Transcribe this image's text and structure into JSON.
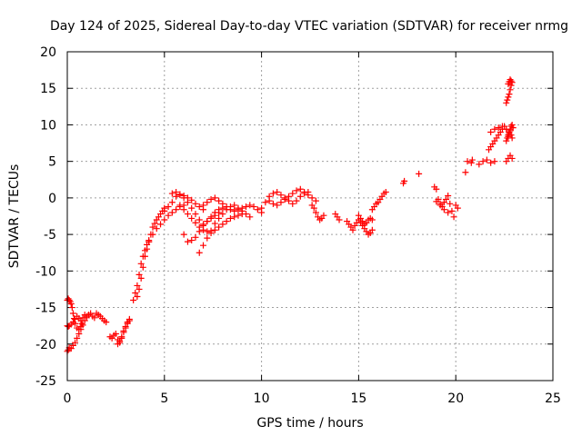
{
  "chart_data": {
    "type": "scatter",
    "title": "Day 124 of 2025, Sidereal Day-to-day VTEC variation (SDTVAR) for receiver nrmg",
    "xlabel": "GPS time / hours",
    "ylabel": "SDTVAR / TECUs",
    "xlim": [
      0,
      25
    ],
    "ylim": [
      -25,
      20
    ],
    "x_ticks": [
      0,
      5,
      10,
      15,
      20,
      25
    ],
    "y_ticks": [
      -25,
      -20,
      -15,
      -10,
      -5,
      0,
      5,
      10,
      15,
      20
    ],
    "grid": true,
    "marker": "+",
    "colors": {
      "series": "#ff0000",
      "grid": "#a0a0a0",
      "axis": "#000000"
    },
    "series": [
      {
        "name": "SDTVAR",
        "x": [
          0.0,
          0.05,
          0.1,
          0.2,
          0.3,
          0.4,
          0.5,
          0.6,
          0.7,
          0.8,
          0.9,
          1.0,
          1.1,
          1.2,
          1.3,
          1.4,
          1.5,
          1.6,
          1.7,
          1.8,
          1.9,
          2.0,
          0.0,
          0.05,
          0.1,
          0.15,
          0.2,
          0.25,
          0.3,
          0.35,
          0.4,
          0.5,
          0.6,
          0.7,
          0.75,
          0.0,
          0.05,
          0.1,
          0.2,
          0.3,
          0.4,
          0.5,
          0.6,
          0.7,
          0.8,
          0.9,
          1.0,
          2.2,
          2.3,
          2.4,
          2.5,
          2.6,
          2.7,
          2.8,
          2.9,
          3.0,
          3.1,
          3.2,
          2.6,
          2.7,
          2.8,
          2.9,
          3.0,
          3.1,
          3.2,
          3.4,
          3.5,
          3.6,
          3.7,
          3.8,
          3.9,
          4.0,
          4.1,
          4.2,
          3.6,
          3.7,
          3.8,
          3.9,
          4.0,
          4.1,
          4.2,
          4.3,
          4.4,
          4.5,
          4.6,
          4.7,
          4.8,
          4.9,
          5.0,
          4.2,
          4.4,
          4.6,
          4.8,
          5.0,
          5.2,
          5.4,
          5.6,
          5.8,
          6.0,
          5.0,
          5.2,
          5.4,
          5.6,
          5.8,
          6.0,
          6.2,
          6.4,
          6.6,
          6.8,
          7.0,
          5.4,
          5.6,
          5.8,
          6.0,
          6.2,
          6.4,
          6.6,
          6.8,
          7.0,
          7.2,
          7.4,
          7.6,
          7.8,
          8.0,
          5.8,
          6.0,
          6.2,
          6.4,
          6.6,
          6.8,
          7.0,
          7.2,
          7.4,
          7.6,
          7.8,
          8.0,
          8.2,
          8.4,
          8.6,
          8.8,
          9.0,
          6.0,
          6.2,
          6.4,
          6.6,
          6.8,
          7.0,
          7.2,
          7.4,
          7.6,
          7.8,
          7.0,
          7.2,
          7.4,
          7.6,
          7.8,
          8.0,
          8.2,
          8.4,
          8.6,
          8.8,
          9.0,
          9.2,
          9.4,
          9.6,
          9.8,
          10.0,
          6.8,
          7.0,
          7.2,
          7.4,
          7.6,
          7.8,
          8.0,
          8.2,
          8.4,
          8.6,
          8.8,
          9.0,
          9.2,
          9.4,
          10.0,
          10.2,
          10.4,
          10.6,
          10.8,
          11.0,
          11.2,
          11.4,
          11.6,
          11.8,
          12.0,
          12.2,
          12.4,
          10.4,
          10.6,
          10.8,
          11.0,
          11.2,
          11.4,
          11.6,
          11.8,
          12.0,
          12.2,
          12.4,
          12.6,
          12.8,
          12.6,
          12.7,
          12.8,
          12.9,
          13.0,
          13.1,
          13.2,
          13.8,
          13.9,
          14.0,
          14.4,
          14.5,
          14.6,
          14.7,
          14.8,
          14.9,
          15.0,
          15.1,
          15.2,
          15.3,
          15.4,
          15.5,
          15.6,
          15.7,
          15.0,
          15.1,
          15.2,
          15.3,
          15.4,
          15.5,
          15.6,
          15.7,
          15.7,
          15.8,
          15.9,
          16.0,
          16.1,
          16.2,
          16.3,
          16.4,
          17.3,
          17.35,
          18.1,
          18.9,
          19.0,
          19.1,
          19.2,
          19.3,
          19.4,
          19.5,
          19.6,
          19.0,
          19.2,
          19.4,
          19.6,
          19.7,
          19.8,
          19.9,
          20.0,
          20.1,
          20.5,
          20.8,
          20.85,
          20.6,
          21.2,
          21.4,
          21.6,
          21.8,
          22.0,
          21.7,
          21.8,
          21.9,
          22.0,
          22.1,
          22.2,
          22.3,
          22.4,
          22.5,
          21.8,
          22.0,
          22.2,
          22.4,
          22.6,
          22.6,
          22.65,
          22.7,
          22.75,
          22.8,
          22.85,
          22.9,
          22.95,
          22.6,
          22.7,
          22.8,
          22.9,
          22.6,
          22.65,
          22.7,
          22.75,
          22.8,
          22.85,
          22.7,
          22.75,
          22.8,
          22.85,
          22.9,
          22.7,
          22.75,
          22.8,
          22.85,
          22.9
        ],
        "y": [
          -17.5,
          -17.6,
          -17.5,
          -17.3,
          -17.0,
          -16.6,
          -16.2,
          -16.5,
          -16.8,
          -16.4,
          -16.0,
          -16.2,
          -16.0,
          -15.8,
          -16.2,
          -16.4,
          -15.8,
          -16.0,
          -16.2,
          -16.5,
          -16.8,
          -17.0,
          -14.0,
          -13.8,
          -14.0,
          -14.2,
          -14.5,
          -15.0,
          -15.8,
          -16.5,
          -17.2,
          -17.8,
          -18.0,
          -17.6,
          -17.2,
          -21.0,
          -20.8,
          -20.5,
          -20.6,
          -20.2,
          -19.8,
          -19.2,
          -18.6,
          -18.0,
          -17.4,
          -16.8,
          -16.4,
          -19.0,
          -19.2,
          -18.8,
          -18.6,
          -19.4,
          -19.8,
          -19.2,
          -18.4,
          -17.8,
          -17.2,
          -16.8,
          -20.0,
          -19.6,
          -19.0,
          -18.2,
          -17.6,
          -17.0,
          -16.6,
          -14.0,
          -13.0,
          -12.0,
          -10.5,
          -9.0,
          -8.0,
          -7.2,
          -6.4,
          -5.8,
          -13.5,
          -12.5,
          -11.0,
          -9.5,
          -8.0,
          -7.0,
          -6.0,
          -5.0,
          -4.0,
          -3.5,
          -3.0,
          -2.6,
          -2.2,
          -1.8,
          -1.4,
          -6.0,
          -5.0,
          -4.2,
          -3.6,
          -3.0,
          -2.4,
          -2.0,
          -1.6,
          -1.2,
          -1.0,
          -1.8,
          -1.2,
          -0.6,
          0.2,
          0.5,
          0.3,
          0.0,
          -0.3,
          -0.8,
          -1.2,
          -1.6,
          0.6,
          0.8,
          0.4,
          0.0,
          -0.6,
          -1.4,
          -2.2,
          -3.0,
          -3.6,
          -3.2,
          -2.6,
          -2.0,
          -1.6,
          -1.4,
          -1.0,
          -1.6,
          -2.2,
          -2.8,
          -3.4,
          -4.0,
          -4.4,
          -4.6,
          -4.8,
          -4.4,
          -4.0,
          -3.6,
          -3.2,
          -2.8,
          -2.6,
          -2.4,
          -2.2,
          -5.0,
          -6.0,
          -5.8,
          -5.4,
          -4.6,
          -3.8,
          -3.2,
          -2.8,
          -2.4,
          -2.0,
          -1.0,
          -0.6,
          -0.2,
          0.0,
          -0.4,
          -0.8,
          -1.2,
          -1.6,
          -1.8,
          -1.6,
          -1.4,
          -1.2,
          -1.0,
          -1.2,
          -1.6,
          -2.0,
          -7.5,
          -6.5,
          -5.5,
          -4.5,
          -3.5,
          -2.8,
          -2.2,
          -1.6,
          -1.2,
          -1.0,
          -1.4,
          -1.8,
          -2.2,
          -2.6,
          -1.4,
          -0.6,
          0.2,
          0.6,
          0.8,
          0.4,
          0.0,
          -0.4,
          -0.8,
          -0.4,
          0.2,
          0.6,
          0.8,
          -0.4,
          -0.8,
          -1.0,
          -0.6,
          -0.2,
          0.2,
          0.6,
          1.0,
          1.2,
          0.8,
          0.4,
          0.0,
          -0.4,
          -1.0,
          -1.4,
          -2.0,
          -2.6,
          -3.0,
          -2.8,
          -2.4,
          -2.2,
          -2.6,
          -3.0,
          -3.2,
          -3.6,
          -4.0,
          -4.4,
          -3.8,
          -3.4,
          -3.0,
          -3.4,
          -3.8,
          -4.2,
          -4.6,
          -5.0,
          -4.8,
          -4.4,
          -2.4,
          -2.8,
          -3.2,
          -3.6,
          -3.4,
          -3.0,
          -2.8,
          -3.0,
          -1.6,
          -1.2,
          -0.8,
          -0.6,
          -0.2,
          0.2,
          0.6,
          0.8,
          2.0,
          2.3,
          3.3,
          1.5,
          1.2,
          -0.2,
          -0.8,
          -1.2,
          -0.6,
          -0.2,
          0.3,
          -0.5,
          -1.0,
          -1.6,
          -2.0,
          -0.8,
          -1.8,
          -2.6,
          -1.0,
          -1.4,
          3.5,
          4.8,
          5.2,
          5.0,
          4.6,
          5.0,
          5.2,
          4.8,
          5.0,
          6.6,
          7.0,
          7.4,
          7.8,
          8.2,
          8.6,
          9.0,
          9.4,
          9.8,
          9.0,
          9.4,
          9.6,
          9.8,
          9.4,
          7.8,
          8.2,
          8.6,
          9.0,
          9.4,
          9.8,
          10.0,
          9.6,
          5.0,
          5.4,
          5.8,
          5.4,
          13.0,
          13.4,
          13.8,
          14.2,
          14.8,
          15.4,
          15.6,
          15.9,
          16.2,
          16.0,
          15.8,
          8.4,
          8.8,
          9.2,
          8.6,
          8.2
        ]
      }
    ]
  }
}
